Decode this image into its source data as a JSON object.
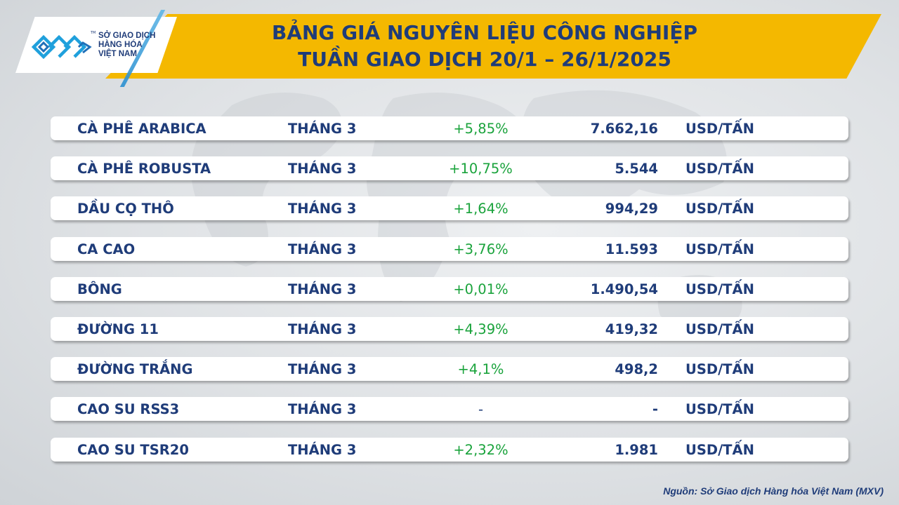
{
  "header": {
    "title_line1": "BẢNG GIÁ NGUYÊN LIỆU CÔNG NGHIỆP",
    "title_line2": "TUẦN GIAO DỊCH 20/1 – 26/1/2025",
    "banner_color": "#f4b800",
    "text_color": "#1f3c79"
  },
  "logo": {
    "line1": "SỞ GIAO DỊCH",
    "line2": "HÀNG HÓA",
    "line3": "VIỆT NAM",
    "tm": "TM",
    "icon": "mxv-logo-icon"
  },
  "table": {
    "rows": [
      {
        "name": "CÀ PHÊ ARABICA",
        "month": "THÁNG 3",
        "change": "+5,85%",
        "price": "7.662,16",
        "unit": "USD/TẤN"
      },
      {
        "name": "CÀ PHÊ ROBUSTA",
        "month": "THÁNG 3",
        "change": "+10,75%",
        "price": "5.544",
        "unit": "USD/TẤN"
      },
      {
        "name": "DẦU CỌ THÔ",
        "month": "THÁNG 3",
        "change": "+1,64%",
        "price": "994,29",
        "unit": "USD/TẤN"
      },
      {
        "name": "CA CAO",
        "month": "THÁNG 3",
        "change": "+3,76%",
        "price": "11.593",
        "unit": "USD/TẤN"
      },
      {
        "name": "BÔNG",
        "month": "THÁNG 3",
        "change": "+0,01%",
        "price": "1.490,54",
        "unit": "USD/TẤN"
      },
      {
        "name": "ĐƯỜNG 11",
        "month": "THÁNG 3",
        "change": "+4,39%",
        "price": "419,32",
        "unit": "USD/TẤN"
      },
      {
        "name": "ĐƯỜNG TRẮNG",
        "month": "THÁNG 3",
        "change": "+4,1%",
        "price": "498,2",
        "unit": "USD/TẤN"
      },
      {
        "name": "CAO SU RSS3",
        "month": "THÁNG 3",
        "change": "-",
        "price": "-",
        "unit": "USD/TẤN"
      },
      {
        "name": "CAO SU TSR20",
        "month": "THÁNG 3",
        "change": "+2,32%",
        "price": "1.981",
        "unit": "USD/TẤN"
      }
    ],
    "positive_color": "#1aa33c"
  },
  "footer": {
    "source": "Nguồn: Sở Giao dịch Hàng hóa Việt Nam (MXV)"
  }
}
